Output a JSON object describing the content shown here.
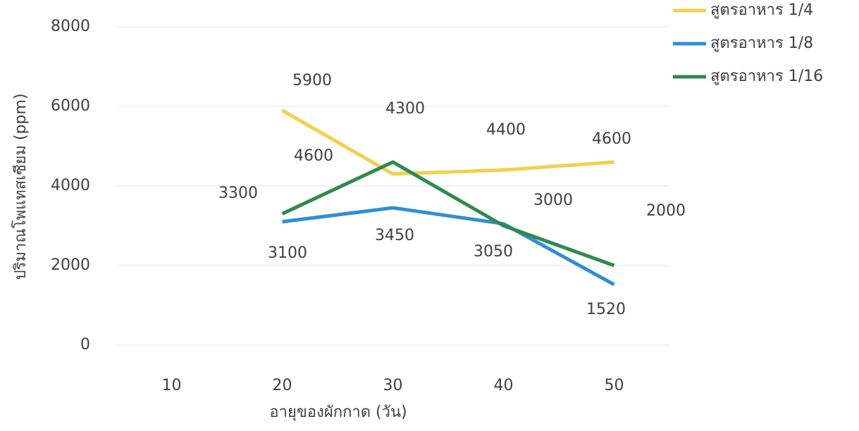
{
  "chart_data": {
    "type": "line",
    "x_label": "อายุของผักกาด (วัน)",
    "y_label": "ปริมาณโพแทสเซียม (ppm)",
    "x": [
      20,
      30,
      40,
      50
    ],
    "xlim": [
      5,
      55
    ],
    "xticks": [
      10,
      20,
      30,
      40,
      50
    ],
    "ylim": [
      0,
      8000
    ],
    "yticks": [
      0,
      2000,
      4000,
      6000,
      8000
    ],
    "grid": true,
    "legend": "top-right",
    "series": [
      {
        "name": "สูตรอาหาร 1/4",
        "color": "#f3d04c",
        "values": [
          5900,
          4300,
          4400,
          4600
        ]
      },
      {
        "name": "สูตรอาหาร 1/8",
        "color": "#2e8fd6",
        "values": [
          3100,
          3450,
          3050,
          1520
        ]
      },
      {
        "name": "สูตรอาหาร 1/16",
        "color": "#2f8a4c",
        "values": [
          3300,
          4600,
          3000,
          2000
        ]
      }
    ]
  }
}
